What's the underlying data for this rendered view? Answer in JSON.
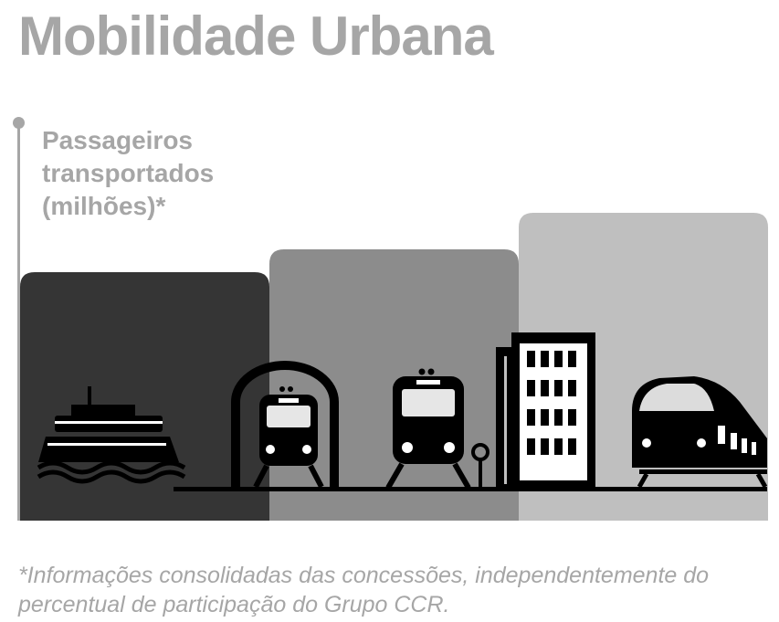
{
  "title": "Mobilidade Urbana",
  "footnote": "*Informações consolidadas das concessões, independentemente do percentual de participação do Grupo CCR.",
  "chart_data": {
    "type": "bar",
    "ylabel": "Passageiros transportados (milhões)*",
    "categories": [
      "",
      "",
      ""
    ],
    "series": [
      {
        "colors": [
          "#353535",
          "#8c8c8c",
          "#bfbfbf"
        ]
      }
    ],
    "icons": [
      "ferry-icon",
      "metro-icon",
      "train-icon",
      "building-icon",
      "high-speed-train-icon"
    ]
  }
}
